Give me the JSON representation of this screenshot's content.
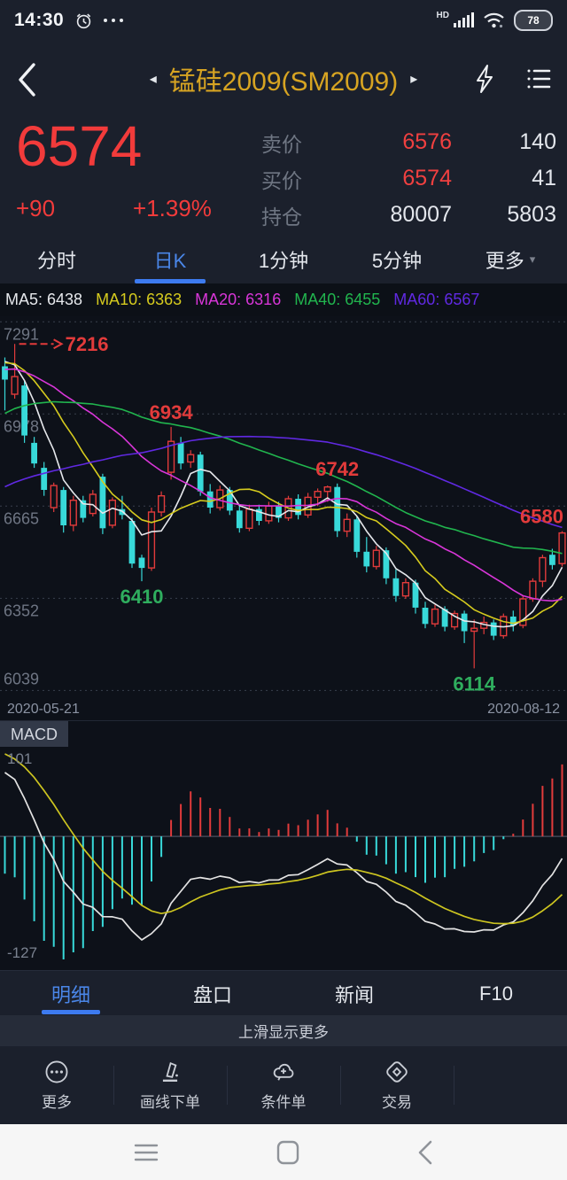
{
  "status_bar": {
    "time": "14:30",
    "hd_label": "HD",
    "battery": "78"
  },
  "header": {
    "title": "锰硅2009(SM2009)"
  },
  "quote": {
    "last": "6574",
    "change": "+90",
    "change_pct": "+1.39%",
    "rows": [
      {
        "label": "卖价",
        "value": "6576",
        "extra": "140"
      },
      {
        "label": "买价",
        "value": "6574",
        "extra": "41"
      },
      {
        "label": "持仓",
        "value": "80007",
        "extra": "5803"
      }
    ]
  },
  "period_tabs": {
    "items": [
      {
        "label": "分时"
      },
      {
        "label": "日K"
      },
      {
        "label": "1分钟"
      },
      {
        "label": "5分钟"
      },
      {
        "label": "更多"
      }
    ],
    "active_index": 1
  },
  "ma_legend": {
    "items": [
      {
        "label": "MA5: 6438",
        "color": "#e6e8ec"
      },
      {
        "label": "MA10: 6363",
        "color": "#d6cb1e"
      },
      {
        "label": "MA20: 6316",
        "color": "#d936d9"
      },
      {
        "label": "MA40: 6455",
        "color": "#21b54e"
      },
      {
        "label": "MA60: 6567",
        "color": "#6029e2"
      }
    ]
  },
  "chart_data": {
    "type": "candlestick",
    "title": "锰硅2009(SM2009) 日K",
    "y_ticks": [
      7291,
      6978,
      6665,
      6352,
      6039
    ],
    "x_labels": [
      "2020-05-21",
      "2020-08-12"
    ],
    "price_range": [
      6010,
      7310
    ],
    "colors": {
      "up": "#e23b3b",
      "down": "#38d9d9",
      "bg": "#0d1119",
      "grid": "#39404e",
      "tick": "#6e7583",
      "dif": "#e3e3e3",
      "dea": "#cdc520",
      "zero": "#4a5160"
    },
    "candles": [
      [
        7140,
        7170,
        6990,
        7095
      ],
      [
        7045,
        7216,
        7030,
        7105
      ],
      [
        7075,
        7090,
        6880,
        6905
      ],
      [
        6880,
        6900,
        6795,
        6810
      ],
      [
        6795,
        6815,
        6700,
        6720
      ],
      [
        6660,
        6745,
        6645,
        6735
      ],
      [
        6720,
        6730,
        6575,
        6600
      ],
      [
        6600,
        6700,
        6580,
        6685
      ],
      [
        6685,
        6700,
        6610,
        6625
      ],
      [
        6640,
        6720,
        6630,
        6705
      ],
      [
        6765,
        6775,
        6570,
        6590
      ],
      [
        6600,
        6695,
        6590,
        6685
      ],
      [
        6655,
        6700,
        6620,
        6635
      ],
      [
        6615,
        6625,
        6455,
        6470
      ],
      [
        6490,
        6500,
        6410,
        6455
      ],
      [
        6455,
        6660,
        6445,
        6645
      ],
      [
        6645,
        6715,
        6630,
        6700
      ],
      [
        6780,
        6934,
        6755,
        6885
      ],
      [
        6880,
        6900,
        6790,
        6810
      ],
      [
        6815,
        6855,
        6795,
        6840
      ],
      [
        6840,
        6850,
        6700,
        6715
      ],
      [
        6715,
        6740,
        6640,
        6660
      ],
      [
        6660,
        6735,
        6650,
        6720
      ],
      [
        6720,
        6730,
        6635,
        6650
      ],
      [
        6650,
        6665,
        6575,
        6590
      ],
      [
        6590,
        6670,
        6580,
        6655
      ],
      [
        6655,
        6670,
        6600,
        6615
      ],
      [
        6615,
        6680,
        6605,
        6665
      ],
      [
        6665,
        6680,
        6610,
        6625
      ],
      [
        6625,
        6700,
        6615,
        6690
      ],
      [
        6690,
        6705,
        6620,
        6635
      ],
      [
        6635,
        6710,
        6625,
        6695
      ],
      [
        6695,
        6725,
        6665,
        6715
      ],
      [
        6715,
        6735,
        6680,
        6730
      ],
      [
        6730,
        6742,
        6560,
        6580
      ],
      [
        6580,
        6640,
        6560,
        6620
      ],
      [
        6620,
        6630,
        6490,
        6510
      ],
      [
        6510,
        6560,
        6440,
        6460
      ],
      [
        6460,
        6530,
        6450,
        6515
      ],
      [
        6515,
        6525,
        6400,
        6420
      ],
      [
        6420,
        6450,
        6340,
        6360
      ],
      [
        6360,
        6420,
        6350,
        6405
      ],
      [
        6405,
        6415,
        6300,
        6320
      ],
      [
        6320,
        6340,
        6250,
        6265
      ],
      [
        6265,
        6330,
        6255,
        6315
      ],
      [
        6315,
        6325,
        6240,
        6255
      ],
      [
        6255,
        6310,
        6245,
        6300
      ],
      [
        6300,
        6310,
        6200,
        6240
      ],
      [
        6240,
        6280,
        6114,
        6250
      ],
      [
        6250,
        6290,
        6230,
        6270
      ],
      [
        6270,
        6280,
        6210,
        6225
      ],
      [
        6225,
        6300,
        6215,
        6290
      ],
      [
        6290,
        6310,
        6240,
        6260
      ],
      [
        6260,
        6360,
        6250,
        6350
      ],
      [
        6350,
        6420,
        6340,
        6410
      ],
      [
        6410,
        6500,
        6390,
        6490
      ],
      [
        6500,
        6520,
        6450,
        6465
      ],
      [
        6470,
        6580,
        6460,
        6574
      ]
    ],
    "annotations": [
      {
        "text": "7216",
        "price": 7216,
        "index": 1,
        "color": "#e23b3b",
        "style": "arrow"
      },
      {
        "text": "6934",
        "price": 6934,
        "index": 17,
        "color": "#e23b3b",
        "placement": "above"
      },
      {
        "text": "6742",
        "price": 6742,
        "index": 34,
        "color": "#e23b3b",
        "placement": "above"
      },
      {
        "text": "6580",
        "price": 6580,
        "index": 57,
        "color": "#e23b3b",
        "placement": "right-edge"
      },
      {
        "text": "6410",
        "price": 6410,
        "index": 14,
        "color": "#2fae5e",
        "placement": "below"
      },
      {
        "text": "6114",
        "price": 6114,
        "index": 48,
        "color": "#2fae5e",
        "placement": "below"
      }
    ],
    "macd": {
      "label": "MACD",
      "axis_max": "101",
      "axis_min": "-127"
    }
  },
  "bottom_tabs": {
    "items": [
      {
        "label": "明细"
      },
      {
        "label": "盘口"
      },
      {
        "label": "新闻"
      },
      {
        "label": "F10"
      }
    ],
    "active_index": 0
  },
  "swipe_hint": "上滑显示更多",
  "toolbar": {
    "items": [
      {
        "label": "更多"
      },
      {
        "label": "画线下单"
      },
      {
        "label": "条件单"
      },
      {
        "label": "交易"
      }
    ]
  }
}
